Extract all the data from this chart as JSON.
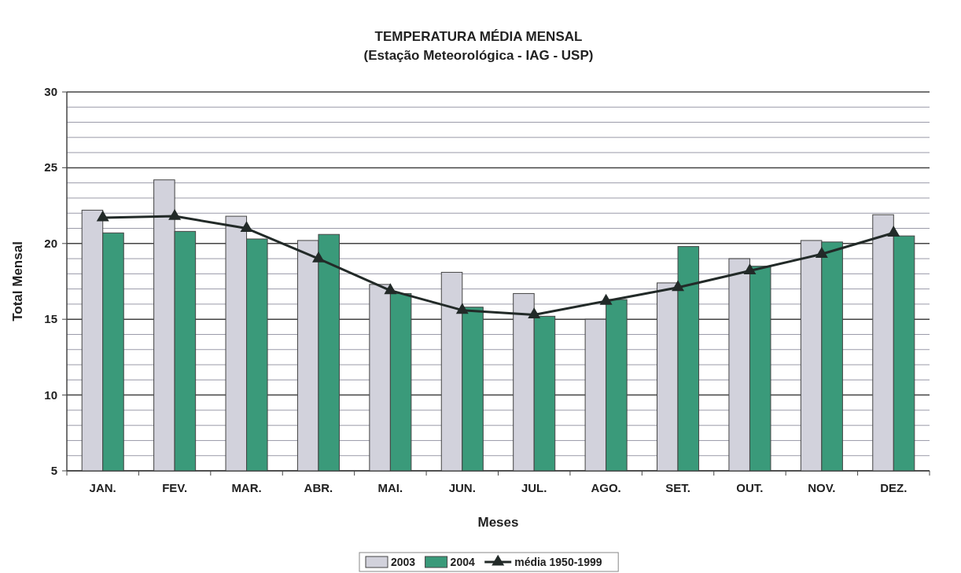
{
  "chart_data": {
    "type": "bar",
    "title": "TEMPERATURA MÉDIA MENSAL",
    "subtitle": "(Estação Meteorológica - IAG - USP)",
    "xlabel": "Meses",
    "ylabel": "Total Mensal",
    "categories": [
      "JAN.",
      "FEV.",
      "MAR.",
      "ABR.",
      "MAI.",
      "JUN.",
      "JUL.",
      "AGO.",
      "SET.",
      "OUT.",
      "NOV.",
      "DEZ."
    ],
    "series": [
      {
        "name": "2003",
        "color": "#d2d2dc",
        "values": [
          22.2,
          24.2,
          21.8,
          20.2,
          17.3,
          18.1,
          16.7,
          15.0,
          17.4,
          19.0,
          20.2,
          21.9
        ]
      },
      {
        "name": "2004",
        "color": "#3a9a7a",
        "values": [
          20.7,
          20.8,
          20.3,
          20.6,
          16.7,
          15.8,
          15.2,
          16.3,
          19.8,
          18.5,
          20.1,
          20.5
        ]
      },
      {
        "name": "média 1950-1999",
        "type": "line",
        "color": "#222a28",
        "marker": "triangle",
        "values": [
          21.7,
          21.8,
          21.0,
          19.0,
          16.9,
          15.6,
          15.3,
          16.2,
          17.1,
          18.2,
          19.3,
          20.7
        ]
      }
    ],
    "ylim": [
      5,
      30
    ],
    "yticks": [
      5,
      10,
      15,
      20,
      25,
      30
    ],
    "grid": "y",
    "legend": "bottom"
  }
}
